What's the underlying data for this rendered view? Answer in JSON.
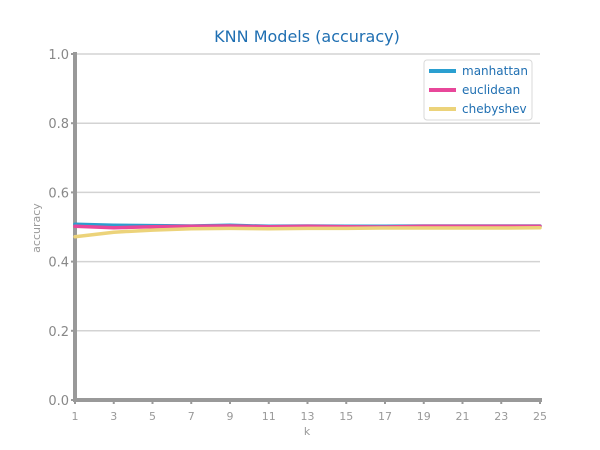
{
  "chart_data": {
    "type": "line",
    "title": "KNN Models (accuracy)",
    "xlabel": "k",
    "ylabel": "accuracy",
    "x": [
      1,
      3,
      5,
      7,
      9,
      11,
      13,
      15,
      17,
      19,
      21,
      23,
      25
    ],
    "x_ticks": [
      "1",
      "3",
      "5",
      "7",
      "9",
      "11",
      "13",
      "15",
      "17",
      "19",
      "21",
      "23",
      "25"
    ],
    "y_ticks": [
      "0.0",
      "0.2",
      "0.4",
      "0.6",
      "0.8",
      "1.0"
    ],
    "xlim": [
      1,
      25
    ],
    "ylim": [
      0,
      1
    ],
    "grid": "horizontal",
    "legend_position": "top-right",
    "series": [
      {
        "name": "manhattan",
        "color": "#2a9fd0",
        "values": [
          0.508,
          0.505,
          0.504,
          0.503,
          0.505,
          0.502,
          0.503,
          0.502,
          0.502,
          0.503,
          0.503,
          0.503,
          0.503
        ]
      },
      {
        "name": "euclidean",
        "color": "#e8479a",
        "values": [
          0.502,
          0.498,
          0.501,
          0.502,
          0.503,
          0.501,
          0.502,
          0.501,
          0.5,
          0.502,
          0.502,
          0.502,
          0.502
        ]
      },
      {
        "name": "chebyshev",
        "color": "#ecd37a",
        "values": [
          0.472,
          0.485,
          0.491,
          0.495,
          0.496,
          0.495,
          0.496,
          0.496,
          0.497,
          0.497,
          0.497,
          0.497,
          0.498
        ]
      }
    ]
  }
}
